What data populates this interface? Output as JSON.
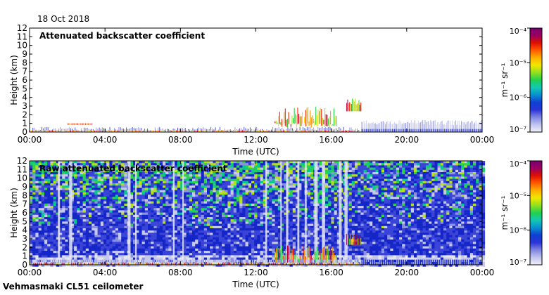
{
  "date": "18 Oct 2018",
  "site_label": "Vehmasmaki CL51 ceilometer",
  "chart_data": [
    {
      "type": "heatmap",
      "title": "Attenuated backscatter coefficient",
      "xlabel": "Time (UTC)",
      "ylabel": "Height (km)",
      "x_ticks": [
        "00:00",
        "04:00",
        "08:00",
        "12:00",
        "16:00",
        "20:00",
        "00:00"
      ],
      "y_ticks": [
        "0",
        "1",
        "2",
        "3",
        "4",
        "5",
        "6",
        "7",
        "8",
        "9",
        "10",
        "11",
        "12"
      ],
      "xlim_hours": [
        0,
        24
      ],
      "ylim_km": [
        0,
        12
      ],
      "colorbar": {
        "label": "m⁻¹ sr⁻¹",
        "scale": "log",
        "ticks": [
          "10⁻⁷",
          "10⁻⁶",
          "10⁻⁵",
          "10⁻⁴"
        ],
        "range": [
          1e-07,
          0.0001
        ]
      },
      "features": [
        {
          "name": "surface layer",
          "start_h": 0,
          "end_h": 17.5,
          "top_km": 0.6
        },
        {
          "name": "aerosol layer",
          "start_h": 2,
          "end_h": 3.3,
          "top_km": 1.0
        },
        {
          "name": "cloud",
          "start_h": 13,
          "end_h": 16.3,
          "base_km": 0.6,
          "top_km": 3.0
        },
        {
          "name": "cloud",
          "start_h": 16.8,
          "end_h": 17.6,
          "base_km": 2.4,
          "top_km": 3.9
        },
        {
          "name": "weak boundary layer",
          "start_h": 18.5,
          "end_h": 23.5,
          "top_km": 1.4
        }
      ]
    },
    {
      "type": "heatmap",
      "title": "Raw attenuated backscatter coefficient",
      "xlabel": "Time (UTC)",
      "ylabel": "Height (km)",
      "x_ticks": [
        "00:00",
        "04:00",
        "08:00",
        "12:00",
        "16:00",
        "20:00",
        "00:00"
      ],
      "y_ticks": [
        "0",
        "1",
        "2",
        "3",
        "4",
        "5",
        "6",
        "7",
        "8",
        "9",
        "10",
        "11",
        "12"
      ],
      "xlim_hours": [
        0,
        24
      ],
      "ylim_km": [
        0,
        12
      ],
      "colorbar": {
        "label": "m⁻¹ sr⁻¹",
        "scale": "log",
        "ticks": [
          "10⁻⁷",
          "10⁻⁶",
          "10⁻⁵",
          "10⁻⁴"
        ],
        "range": [
          1e-07,
          0.0001
        ]
      },
      "features": [
        {
          "name": "noise field",
          "start_h": 0,
          "end_h": 24,
          "base_km": 1.5,
          "top_km": 12
        },
        {
          "name": "cloud",
          "start_h": 13,
          "end_h": 16.3,
          "base_km": 0.3,
          "top_km": 2.3
        },
        {
          "name": "cloud",
          "start_h": 16.8,
          "end_h": 17.6,
          "base_km": 2.4,
          "top_km": 3.6
        },
        {
          "name": "surface layer",
          "start_h": 0,
          "end_h": 24,
          "top_km": 0.6
        }
      ]
    }
  ]
}
